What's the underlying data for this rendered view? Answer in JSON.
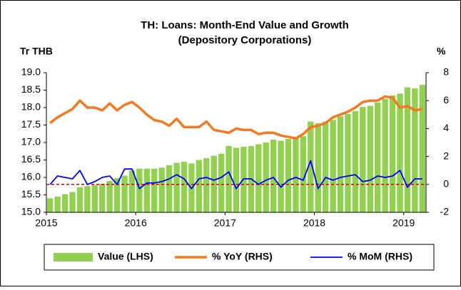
{
  "chart_data": {
    "type": "bar",
    "title": [
      "TH: Loans: Month-End Value and Growth",
      "(Depository Corporations)"
    ],
    "y_label": "Tr THB",
    "y2_label": "%",
    "categories": [
      "2015",
      null,
      null,
      null,
      null,
      null,
      null,
      null,
      null,
      null,
      null,
      null,
      "2016",
      null,
      null,
      null,
      null,
      null,
      null,
      null,
      null,
      null,
      null,
      null,
      "2017",
      null,
      null,
      null,
      null,
      null,
      null,
      null,
      null,
      null,
      null,
      null,
      "2018",
      null,
      null,
      null,
      null,
      null,
      null,
      null,
      null,
      null,
      null,
      null,
      "2019",
      null,
      null
    ],
    "series": [
      {
        "name": "Value (LHS)",
        "color": "#92d050",
        "kind": "bar",
        "axis": "y",
        "values": [
          15.4,
          15.45,
          15.52,
          15.58,
          15.72,
          15.75,
          15.78,
          15.82,
          15.9,
          15.98,
          16.05,
          16.2,
          16.25,
          16.25,
          16.25,
          16.28,
          16.35,
          16.42,
          16.45,
          16.4,
          16.5,
          16.55,
          16.62,
          16.68,
          16.9,
          16.85,
          16.88,
          16.9,
          16.95,
          17.0,
          17.08,
          17.05,
          17.1,
          17.12,
          17.18,
          17.6,
          17.55,
          17.6,
          17.65,
          17.75,
          17.82,
          17.9,
          18.02,
          18.05,
          18.15,
          18.25,
          18.35,
          18.4,
          18.58,
          18.55,
          18.65
        ]
      },
      {
        "name": "% YoY (RHS)",
        "color": "#f47920",
        "kind": "line",
        "axis": "y2",
        "values": [
          4.4,
          4.8,
          5.1,
          5.4,
          6.0,
          5.5,
          5.5,
          5.3,
          5.8,
          5.3,
          5.7,
          5.9,
          5.5,
          5.0,
          4.6,
          4.5,
          4.2,
          4.7,
          4.1,
          4.1,
          4.1,
          4.5,
          3.9,
          3.8,
          3.7,
          4.0,
          3.9,
          3.9,
          3.6,
          3.7,
          3.7,
          3.5,
          3.4,
          3.3,
          3.6,
          4.1,
          4.2,
          4.4,
          4.8,
          5.0,
          5.2,
          5.5,
          5.9,
          6.0,
          6.0,
          6.3,
          6.2,
          5.5,
          5.6,
          5.3,
          5.4
        ]
      },
      {
        "name": "% MoM (RHS)",
        "color": "#0000ff",
        "kind": "line",
        "axis": "y2",
        "values": [
          0.0,
          0.6,
          0.5,
          0.4,
          1.0,
          0.0,
          0.2,
          0.5,
          0.6,
          0.0,
          1.1,
          1.1,
          -0.3,
          0.1,
          0.1,
          0.2,
          0.4,
          0.7,
          0.4,
          -0.3,
          0.4,
          0.5,
          0.3,
          0.5,
          0.9,
          -0.3,
          0.4,
          0.4,
          0.0,
          0.3,
          0.5,
          -0.2,
          0.3,
          0.5,
          0.3,
          1.7,
          -0.3,
          0.5,
          0.3,
          0.5,
          0.6,
          0.7,
          0.2,
          0.3,
          0.6,
          0.5,
          0.6,
          1.0,
          -0.2,
          0.4,
          0.4
        ]
      }
    ],
    "ylim": [
      15,
      19
    ],
    "yticks": [
      {
        "value": 15,
        "label": "15.0"
      },
      15.5,
      {
        "value": 16,
        "label": "16.0"
      },
      16.5,
      {
        "value": 17,
        "label": "17.0"
      },
      17.5,
      {
        "value": 18,
        "label": "18.0"
      },
      18.5,
      {
        "value": 19,
        "label": "19.0"
      }
    ],
    "y2lim": [
      -2,
      8
    ],
    "y2ticks": [
      -2,
      0,
      2,
      4,
      6,
      8
    ],
    "ref_line": {
      "axis": "y2",
      "value": 0,
      "color": "#e00000"
    },
    "legend": "bottom",
    "grid": false
  }
}
